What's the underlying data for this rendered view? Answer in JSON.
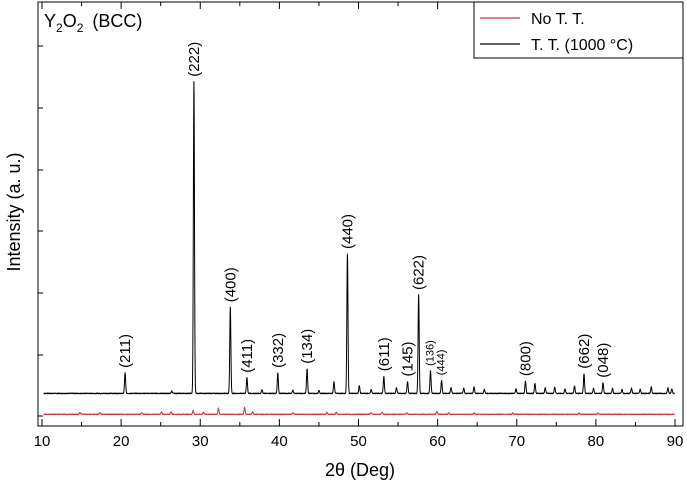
{
  "chart_data": {
    "type": "line",
    "title": {
      "compound_main": "Y",
      "sub1": "2",
      "mid": "O",
      "sub2": "2",
      "phase": "(BCC)"
    },
    "xlabel": "2θ (Deg)",
    "ylabel": "Intensity (a. u.)",
    "xlim": [
      10,
      90
    ],
    "xticks": [
      "10",
      "20",
      "30",
      "40",
      "50",
      "60",
      "70",
      "80",
      "90"
    ],
    "ylim": [
      0,
      100
    ],
    "legend": {
      "position": "top-right",
      "entries": [
        "No T. T.",
        "T. T. (1000 °C)"
      ]
    },
    "series": [
      {
        "name": "T. T. (1000 °C)",
        "color": "#000000",
        "baseline": 6,
        "peaks": [
          {
            "x": 20.5,
            "y": 11.0
          },
          {
            "x": 26.4,
            "y": 6.6
          },
          {
            "x": 29.2,
            "y": 82.0
          },
          {
            "x": 33.8,
            "y": 27.0
          },
          {
            "x": 35.9,
            "y": 9.8
          },
          {
            "x": 37.8,
            "y": 6.9
          },
          {
            "x": 39.8,
            "y": 11.0
          },
          {
            "x": 41.7,
            "y": 6.8
          },
          {
            "x": 43.5,
            "y": 12.0
          },
          {
            "x": 45.0,
            "y": 6.7
          },
          {
            "x": 46.9,
            "y": 8.8
          },
          {
            "x": 48.6,
            "y": 40.0
          },
          {
            "x": 50.1,
            "y": 7.9
          },
          {
            "x": 51.6,
            "y": 6.9
          },
          {
            "x": 53.2,
            "y": 10.2
          },
          {
            "x": 54.8,
            "y": 7.4
          },
          {
            "x": 56.2,
            "y": 8.9
          },
          {
            "x": 57.6,
            "y": 30.0
          },
          {
            "x": 59.1,
            "y": 11.5
          },
          {
            "x": 60.5,
            "y": 9.2
          },
          {
            "x": 61.7,
            "y": 7.4
          },
          {
            "x": 63.3,
            "y": 7.3
          },
          {
            "x": 64.6,
            "y": 7.6
          },
          {
            "x": 65.9,
            "y": 7.0
          },
          {
            "x": 69.9,
            "y": 7.1
          },
          {
            "x": 71.1,
            "y": 9.0
          },
          {
            "x": 72.3,
            "y": 8.4
          },
          {
            "x": 73.6,
            "y": 7.4
          },
          {
            "x": 74.8,
            "y": 7.5
          },
          {
            "x": 76.1,
            "y": 7.1
          },
          {
            "x": 77.3,
            "y": 7.8
          },
          {
            "x": 78.5,
            "y": 10.8
          },
          {
            "x": 79.7,
            "y": 7.2
          },
          {
            "x": 80.9,
            "y": 8.6
          },
          {
            "x": 82.1,
            "y": 7.2
          },
          {
            "x": 83.3,
            "y": 7.0
          },
          {
            "x": 84.5,
            "y": 7.3
          },
          {
            "x": 85.6,
            "y": 7.0
          },
          {
            "x": 87.0,
            "y": 7.6
          },
          {
            "x": 89.1,
            "y": 7.4
          },
          {
            "x": 89.6,
            "y": 7.1
          }
        ]
      },
      {
        "name": "No T. T.",
        "color": "#c8383c",
        "baseline": 0.9,
        "peaks": [
          {
            "x": 14.8,
            "y": 1.3
          },
          {
            "x": 17.3,
            "y": 1.3
          },
          {
            "x": 22.6,
            "y": 1.3
          },
          {
            "x": 25.1,
            "y": 1.5
          },
          {
            "x": 26.3,
            "y": 1.5
          },
          {
            "x": 29.1,
            "y": 1.8
          },
          {
            "x": 30.4,
            "y": 1.4
          },
          {
            "x": 32.3,
            "y": 2.4
          },
          {
            "x": 35.6,
            "y": 2.6
          },
          {
            "x": 36.6,
            "y": 1.6
          },
          {
            "x": 41.7,
            "y": 1.3
          },
          {
            "x": 46.0,
            "y": 1.4
          },
          {
            "x": 47.2,
            "y": 1.4
          },
          {
            "x": 51.6,
            "y": 1.3
          },
          {
            "x": 53.0,
            "y": 1.4
          },
          {
            "x": 56.1,
            "y": 1.3
          },
          {
            "x": 59.9,
            "y": 1.6
          },
          {
            "x": 61.4,
            "y": 1.3
          },
          {
            "x": 64.6,
            "y": 1.2
          },
          {
            "x": 69.5,
            "y": 1.2
          },
          {
            "x": 77.9,
            "y": 1.2
          },
          {
            "x": 80.3,
            "y": 1.2
          }
        ]
      }
    ],
    "annotations": [
      {
        "text": "(211)",
        "x": 20.5,
        "y": 11.0,
        "size": "normal"
      },
      {
        "text": "(222)",
        "x": 29.2,
        "y": 82.0,
        "size": "normal"
      },
      {
        "text": "(400)",
        "x": 33.8,
        "y": 27.0,
        "size": "normal"
      },
      {
        "text": "(411)",
        "x": 35.9,
        "y": 9.8,
        "size": "normal"
      },
      {
        "text": "(332)",
        "x": 39.8,
        "y": 11.0,
        "size": "normal"
      },
      {
        "text": "(134)",
        "x": 43.5,
        "y": 12.0,
        "size": "normal"
      },
      {
        "text": "(440)",
        "x": 48.6,
        "y": 40.0,
        "size": "normal"
      },
      {
        "text": "(611)",
        "x": 53.2,
        "y": 10.2,
        "size": "normal"
      },
      {
        "text": "(145)",
        "x": 56.2,
        "y": 8.9,
        "size": "normal"
      },
      {
        "text": "(622)",
        "x": 57.6,
        "y": 30.0,
        "size": "normal"
      },
      {
        "text": "(136)",
        "x": 59.1,
        "y": 11.5,
        "size": "small"
      },
      {
        "text": "(444)",
        "x": 60.5,
        "y": 9.2,
        "size": "small"
      },
      {
        "text": "(800)",
        "x": 71.1,
        "y": 9.0,
        "size": "normal"
      },
      {
        "text": "(662)",
        "x": 78.5,
        "y": 10.8,
        "size": "normal"
      },
      {
        "text": "(048)",
        "x": 80.9,
        "y": 8.6,
        "size": "normal"
      }
    ]
  }
}
